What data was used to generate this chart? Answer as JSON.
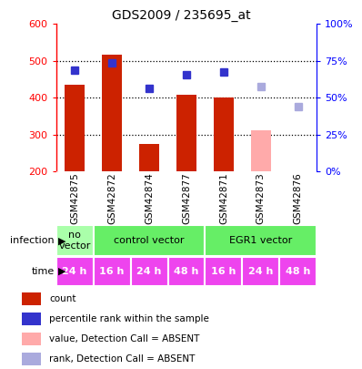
{
  "title": "GDS2009 / 235695_at",
  "samples": [
    "GSM42875",
    "GSM42872",
    "GSM42874",
    "GSM42877",
    "GSM42871",
    "GSM42873",
    "GSM42876"
  ],
  "bar_values": [
    435,
    518,
    275,
    408,
    400,
    null,
    null
  ],
  "bar_colors": [
    "#cc2200",
    "#cc2200",
    "#cc2200",
    "#cc2200",
    "#cc2200",
    "#ffaaaa",
    null
  ],
  "absent_bar_value": 312,
  "absent_bar_color": "#ffaaaa",
  "absent_bar_index": 5,
  "rank_values": [
    475,
    495,
    425,
    462,
    470,
    430,
    375
  ],
  "rank_colors": [
    "#3333cc",
    "#3333cc",
    "#3333cc",
    "#3333cc",
    "#3333cc",
    "#aaaadd",
    "#aaaadd"
  ],
  "ylim_left": [
    200,
    600
  ],
  "ylim_right": [
    0,
    100
  ],
  "yticks_left": [
    200,
    300,
    400,
    500,
    600
  ],
  "yticks_right": [
    0,
    25,
    50,
    75,
    100
  ],
  "grid_lines": [
    300,
    400,
    500
  ],
  "infection_groups": [
    {
      "label": "no\nvector",
      "start": 0,
      "end": 1,
      "color": "#aaffaa"
    },
    {
      "label": "control vector",
      "start": 1,
      "end": 4,
      "color": "#66ee66"
    },
    {
      "label": "EGR1 vector",
      "start": 4,
      "end": 7,
      "color": "#66ee66"
    }
  ],
  "time_labels": [
    "24 h",
    "16 h",
    "24 h",
    "48 h",
    "16 h",
    "24 h",
    "48 h"
  ],
  "time_color": "#ee44ee",
  "legend_items": [
    {
      "color": "#cc2200",
      "label": "count"
    },
    {
      "color": "#3333cc",
      "label": "percentile rank within the sample"
    },
    {
      "color": "#ffaaaa",
      "label": "value, Detection Call = ABSENT"
    },
    {
      "color": "#aaaadd",
      "label": "rank, Detection Call = ABSENT"
    }
  ],
  "bg_color": "#ffffff",
  "sample_bg": "#c8c8c8",
  "bar_width": 0.55
}
